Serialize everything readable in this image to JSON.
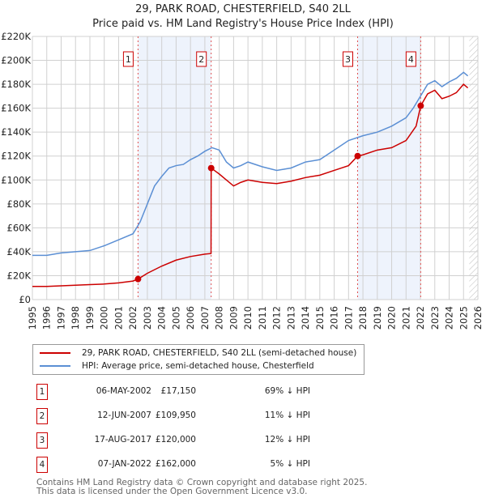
{
  "title": "29, PARK ROAD, CHESTERFIELD, S40 2LL",
  "subtitle": "Price paid vs. HM Land Registry's House Price Index (HPI)",
  "chart_data": {
    "type": "line",
    "xlim": [
      1995,
      2026
    ],
    "ylim": [
      0,
      220000
    ],
    "x_ticks": [
      "1995",
      "1996",
      "1997",
      "1998",
      "1999",
      "2000",
      "2001",
      "2002",
      "2003",
      "2004",
      "2005",
      "2006",
      "2007",
      "2008",
      "2009",
      "2010",
      "2011",
      "2012",
      "2013",
      "2014",
      "2015",
      "2016",
      "2017",
      "2018",
      "2019",
      "2020",
      "2021",
      "2022",
      "2023",
      "2024",
      "2025",
      "2026"
    ],
    "y_ticks": [
      {
        "v": 0,
        "label": "£0"
      },
      {
        "v": 20000,
        "label": "£20K"
      },
      {
        "v": 40000,
        "label": "£40K"
      },
      {
        "v": 60000,
        "label": "£60K"
      },
      {
        "v": 80000,
        "label": "£80K"
      },
      {
        "v": 100000,
        "label": "£100K"
      },
      {
        "v": 120000,
        "label": "£120K"
      },
      {
        "v": 140000,
        "label": "£140K"
      },
      {
        "v": 160000,
        "label": "£160K"
      },
      {
        "v": 180000,
        "label": "£180K"
      },
      {
        "v": 200000,
        "label": "£200K"
      },
      {
        "v": 220000,
        "label": "£220K"
      }
    ],
    "grid": true,
    "series": [
      {
        "name": "29, PARK ROAD, CHESTERFIELD, S40 2LL (semi-detached house)",
        "color": "#cc0000",
        "x": [
          1995,
          1996,
          1997,
          1998,
          1999,
          2000,
          2001,
          2002,
          2002.35,
          2003,
          2004,
          2005,
          2006,
          2007,
          2007.43,
          2007.44,
          2008,
          2008.5,
          2009,
          2009.5,
          2010,
          2011,
          2012,
          2013,
          2014,
          2015,
          2016,
          2017,
          2017.63,
          2018,
          2019,
          2020,
          2021,
          2021.7,
          2022.02,
          2022.5,
          2023,
          2023.5,
          2024,
          2024.5,
          2025,
          2025.3
        ],
        "y": [
          11000,
          11000,
          11500,
          12000,
          12500,
          13000,
          14000,
          15500,
          17150,
          22000,
          28000,
          33000,
          36000,
          38000,
          38500,
          109950,
          105000,
          100000,
          95000,
          98000,
          100000,
          98000,
          97000,
          99000,
          102000,
          104000,
          108000,
          112000,
          120000,
          121000,
          125000,
          127000,
          133000,
          145000,
          162000,
          172000,
          175000,
          168000,
          170000,
          173000,
          180000,
          177000
        ]
      },
      {
        "name": "HPI: Average price, semi-detached house, Chesterfield",
        "color": "#5b8fd4",
        "x": [
          1995,
          1996,
          1997,
          1998,
          1999,
          2000,
          2001,
          2002,
          2002.5,
          2003,
          2003.5,
          2004,
          2004.5,
          2005,
          2005.5,
          2006,
          2006.5,
          2007,
          2007.5,
          2008,
          2008.5,
          2009,
          2009.5,
          2010,
          2011,
          2012,
          2013,
          2014,
          2015,
          2016,
          2017,
          2018,
          2019,
          2020,
          2021,
          2021.5,
          2022,
          2022.5,
          2023,
          2023.5,
          2024,
          2024.5,
          2025,
          2025.3
        ],
        "y": [
          37000,
          37000,
          39000,
          40000,
          41000,
          45000,
          50000,
          55000,
          65000,
          80000,
          95000,
          103000,
          110000,
          112000,
          113000,
          117000,
          120000,
          124000,
          127000,
          125000,
          115000,
          110000,
          112000,
          115000,
          111000,
          108000,
          110000,
          115000,
          117000,
          125000,
          133000,
          137000,
          140000,
          145000,
          152000,
          160000,
          170000,
          180000,
          183000,
          178000,
          182000,
          185000,
          190000,
          187000
        ]
      }
    ],
    "sales": [
      {
        "label": "1",
        "x": 2002.35,
        "y": 17150
      },
      {
        "label": "2",
        "x": 2007.44,
        "y": 109950
      },
      {
        "label": "3",
        "x": 2017.63,
        "y": 120000
      },
      {
        "label": "4",
        "x": 2022.02,
        "y": 162000
      }
    ],
    "shaded_ranges": [
      [
        2002.35,
        2007.44
      ],
      [
        2017.63,
        2022.02
      ]
    ],
    "forecast_from": 2025.4
  },
  "legend": {
    "items": [
      {
        "label": "29, PARK ROAD, CHESTERFIELD, S40 2LL (semi-detached house)",
        "color": "#cc0000"
      },
      {
        "label": "HPI: Average price, semi-detached house, Chesterfield",
        "color": "#5b8fd4"
      }
    ]
  },
  "transactions": [
    {
      "num": "1",
      "date": "06-MAY-2002",
      "price": "£17,150",
      "hpi": "69% ↓ HPI"
    },
    {
      "num": "2",
      "date": "12-JUN-2007",
      "price": "£109,950",
      "hpi": "11% ↓ HPI"
    },
    {
      "num": "3",
      "date": "17-AUG-2017",
      "price": "£120,000",
      "hpi": "12% ↓ HPI"
    },
    {
      "num": "4",
      "date": "07-JAN-2022",
      "price": "£162,000",
      "hpi": "5% ↓ HPI"
    }
  ],
  "footer": {
    "line1": "Contains HM Land Registry data © Crown copyright and database right 2025.",
    "line2": "This data is licensed under the Open Government Licence v3.0."
  }
}
